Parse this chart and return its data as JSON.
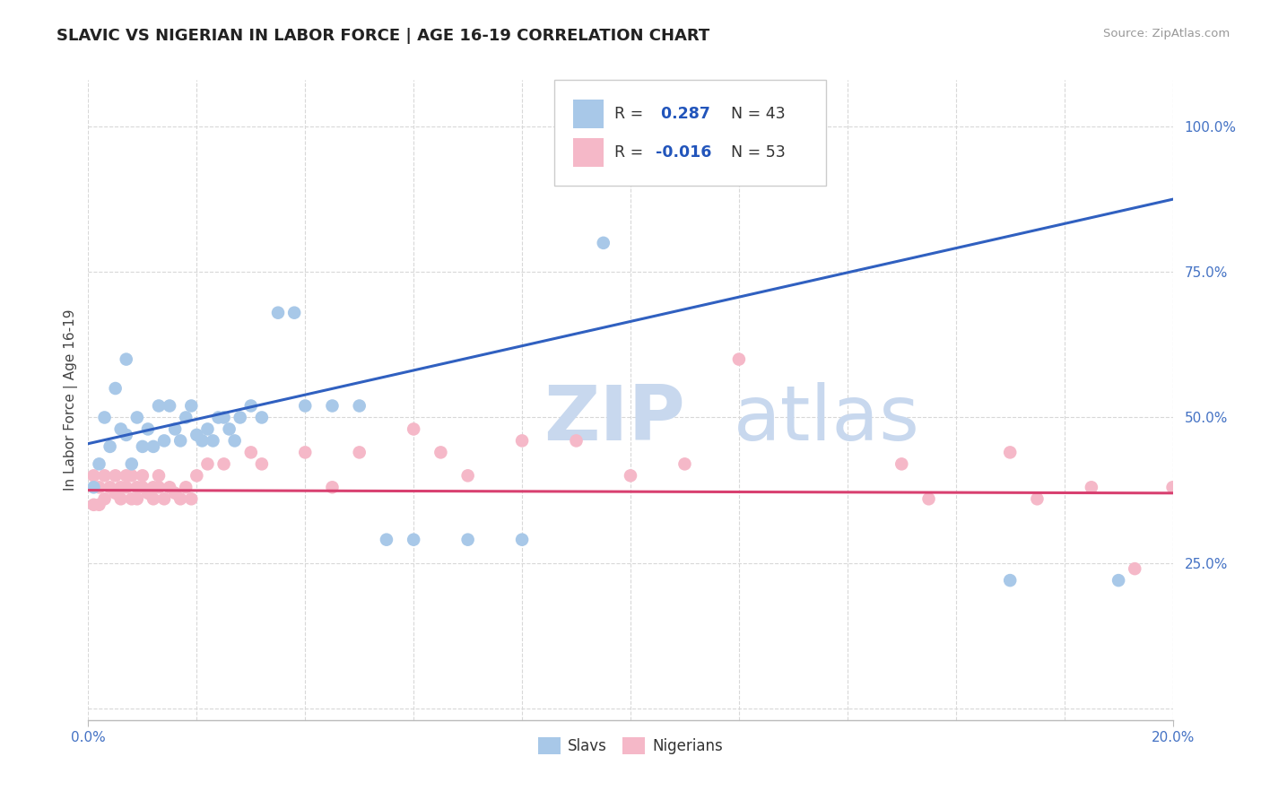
{
  "title": "SLAVIC VS NIGERIAN IN LABOR FORCE | AGE 16-19 CORRELATION CHART",
  "source_text": "Source: ZipAtlas.com",
  "xlim": [
    0.0,
    0.2
  ],
  "ylim": [
    -0.02,
    1.08
  ],
  "slavs_R": 0.287,
  "slavs_N": 43,
  "nigerians_R": -0.016,
  "nigerians_N": 53,
  "slavs_color": "#a8c8e8",
  "nigerians_color": "#f5b8c8",
  "slavs_line_color": "#3060c0",
  "nigerians_line_color": "#d84070",
  "watermark_zip": "ZIP",
  "watermark_atlas": "atlas",
  "watermark_color": "#dce8f5",
  "grid_color": "#d8d8d8",
  "background_color": "#ffffff",
  "slavs_line_y0": 0.455,
  "slavs_line_y1": 0.875,
  "nigerians_line_y0": 0.375,
  "nigerians_line_y1": 0.37,
  "slavs_x": [
    0.001,
    0.002,
    0.003,
    0.004,
    0.005,
    0.006,
    0.007,
    0.007,
    0.008,
    0.009,
    0.01,
    0.011,
    0.012,
    0.013,
    0.014,
    0.015,
    0.016,
    0.017,
    0.018,
    0.019,
    0.02,
    0.021,
    0.022,
    0.023,
    0.024,
    0.025,
    0.026,
    0.027,
    0.028,
    0.03,
    0.032,
    0.035,
    0.038,
    0.04,
    0.045,
    0.05,
    0.055,
    0.06,
    0.07,
    0.08,
    0.095,
    0.17,
    0.19
  ],
  "slavs_y": [
    0.38,
    0.42,
    0.5,
    0.45,
    0.55,
    0.48,
    0.6,
    0.47,
    0.42,
    0.5,
    0.45,
    0.48,
    0.45,
    0.52,
    0.46,
    0.52,
    0.48,
    0.46,
    0.5,
    0.52,
    0.47,
    0.46,
    0.48,
    0.46,
    0.5,
    0.5,
    0.48,
    0.46,
    0.5,
    0.52,
    0.5,
    0.68,
    0.68,
    0.52,
    0.52,
    0.52,
    0.29,
    0.29,
    0.29,
    0.29,
    0.8,
    0.22,
    0.22
  ],
  "nigerians_x": [
    0.001,
    0.001,
    0.002,
    0.002,
    0.003,
    0.003,
    0.004,
    0.005,
    0.005,
    0.006,
    0.006,
    0.007,
    0.007,
    0.008,
    0.008,
    0.009,
    0.009,
    0.01,
    0.01,
    0.011,
    0.012,
    0.012,
    0.013,
    0.013,
    0.014,
    0.015,
    0.016,
    0.017,
    0.018,
    0.019,
    0.02,
    0.022,
    0.025,
    0.03,
    0.032,
    0.04,
    0.045,
    0.05,
    0.06,
    0.065,
    0.07,
    0.08,
    0.09,
    0.1,
    0.11,
    0.12,
    0.15,
    0.155,
    0.17,
    0.175,
    0.185,
    0.193,
    0.2
  ],
  "nigerians_y": [
    0.35,
    0.4,
    0.38,
    0.35,
    0.4,
    0.36,
    0.38,
    0.4,
    0.37,
    0.38,
    0.36,
    0.4,
    0.38,
    0.36,
    0.4,
    0.38,
    0.36,
    0.38,
    0.4,
    0.37,
    0.38,
    0.36,
    0.4,
    0.38,
    0.36,
    0.38,
    0.37,
    0.36,
    0.38,
    0.36,
    0.4,
    0.42,
    0.42,
    0.44,
    0.42,
    0.44,
    0.38,
    0.44,
    0.48,
    0.44,
    0.4,
    0.46,
    0.46,
    0.4,
    0.42,
    0.6,
    0.42,
    0.36,
    0.44,
    0.36,
    0.38,
    0.24,
    0.38
  ]
}
